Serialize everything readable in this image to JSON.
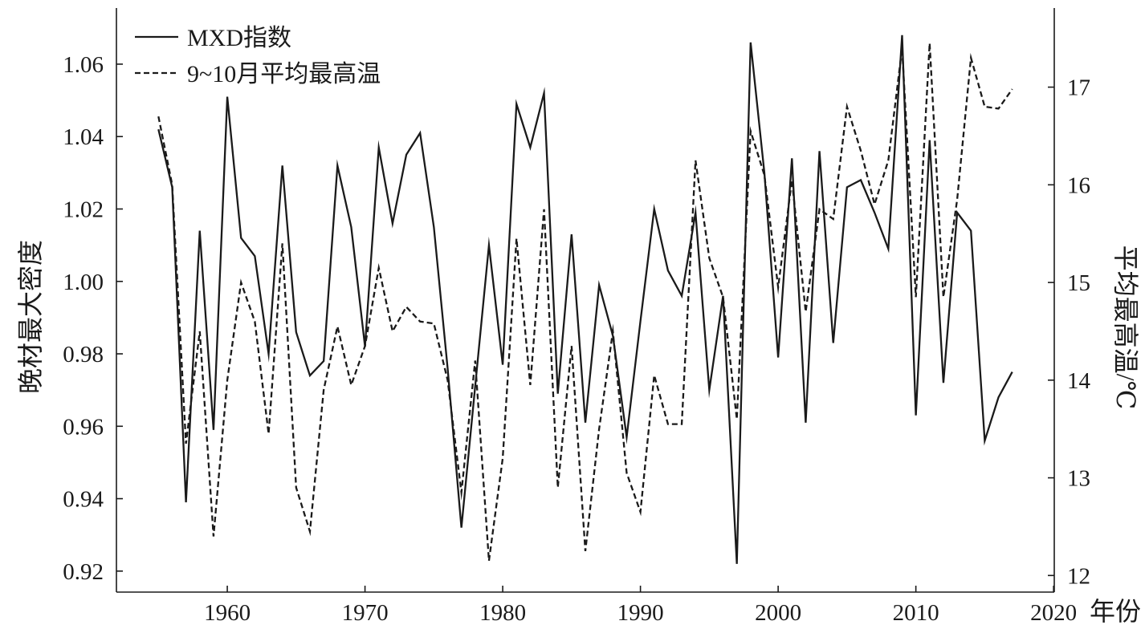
{
  "chart_data": {
    "type": "line",
    "xlabel": "年份",
    "ylabel_left": "晚材最大密度",
    "ylabel_right": "平均最高温/℃",
    "x": [
      1955,
      1956,
      1957,
      1958,
      1959,
      1960,
      1961,
      1962,
      1963,
      1964,
      1965,
      1966,
      1967,
      1968,
      1969,
      1970,
      1971,
      1972,
      1973,
      1974,
      1975,
      1976,
      1977,
      1978,
      1979,
      1980,
      1981,
      1982,
      1983,
      1984,
      1985,
      1986,
      1987,
      1988,
      1989,
      1990,
      1991,
      1992,
      1993,
      1994,
      1995,
      1996,
      1997,
      1998,
      1999,
      2000,
      2001,
      2002,
      2003,
      2004,
      2005,
      2006,
      2007,
      2008,
      2009,
      2010,
      2011,
      2012,
      2013,
      2014,
      2015,
      2016,
      2017
    ],
    "series": [
      {
        "name": "MXD指数",
        "y_axis": "left",
        "line_style": "solid",
        "values": [
          1.042,
          1.026,
          0.939,
          1.014,
          0.959,
          1.051,
          1.012,
          1.007,
          0.98,
          1.032,
          0.986,
          0.974,
          0.978,
          1.032,
          1.015,
          0.982,
          1.037,
          1.016,
          1.035,
          1.041,
          1.015,
          0.976,
          0.932,
          0.971,
          1.01,
          0.977,
          1.049,
          1.037,
          1.052,
          0.969,
          1.013,
          0.961,
          0.999,
          0.985,
          0.957,
          0.989,
          1.02,
          1.003,
          0.996,
          1.019,
          0.97,
          0.996,
          0.922,
          1.066,
          1.03,
          0.979,
          1.034,
          0.961,
          1.036,
          0.983,
          1.026,
          1.028,
          1.019,
          1.009,
          1.068,
          0.963,
          1.039,
          0.972,
          1.019,
          1.014,
          0.956,
          0.968,
          0.975
        ]
      },
      {
        "name": "9~10月平均最高温",
        "y_axis": "right",
        "line_style": "dashed",
        "values": [
          16.7,
          16.0,
          13.35,
          14.5,
          12.4,
          14.0,
          15.0,
          14.6,
          13.45,
          15.4,
          12.9,
          12.45,
          13.9,
          14.55,
          13.95,
          14.35,
          15.15,
          14.5,
          14.75,
          14.6,
          14.58,
          14.0,
          12.85,
          14.2,
          12.15,
          13.2,
          15.45,
          13.95,
          15.75,
          12.9,
          14.35,
          12.25,
          13.5,
          14.5,
          13.05,
          12.65,
          14.05,
          13.55,
          13.55,
          16.25,
          15.25,
          14.85,
          13.6,
          16.55,
          16.1,
          14.95,
          16.05,
          14.7,
          15.75,
          15.65,
          16.8,
          16.35,
          15.8,
          16.25,
          17.4,
          14.85,
          17.45,
          14.85,
          15.85,
          17.3,
          16.8,
          16.78,
          16.98
        ]
      }
    ],
    "xlim": [
      1951.95,
      2020.05
    ],
    "ylim_left": [
      0.9142,
      1.0755
    ],
    "ylim_right": [
      11.83,
      17.81
    ],
    "x_ticks": [
      1960,
      1970,
      1980,
      1990,
      2000,
      2010,
      2020
    ],
    "x_tick_labels": [
      "1960",
      "1970",
      "1980",
      "1990",
      "2000",
      "2010",
      "2020"
    ],
    "y_left_ticks": [
      0.92,
      0.94,
      0.96,
      0.98,
      1.0,
      1.02,
      1.04,
      1.06
    ],
    "y_left_tick_labels": [
      "0.92",
      "0.94",
      "0.96",
      "0.98",
      "1.00",
      "1.02",
      "1.04",
      "1.06"
    ],
    "y_right_ticks": [
      12,
      13,
      14,
      15,
      16,
      17
    ],
    "y_right_tick_labels": [
      "12",
      "13",
      "14",
      "15",
      "16",
      "17"
    ],
    "grid": false,
    "legend_position": "top-left",
    "line_color": "#1a1a1a",
    "background": "#ffffff"
  }
}
